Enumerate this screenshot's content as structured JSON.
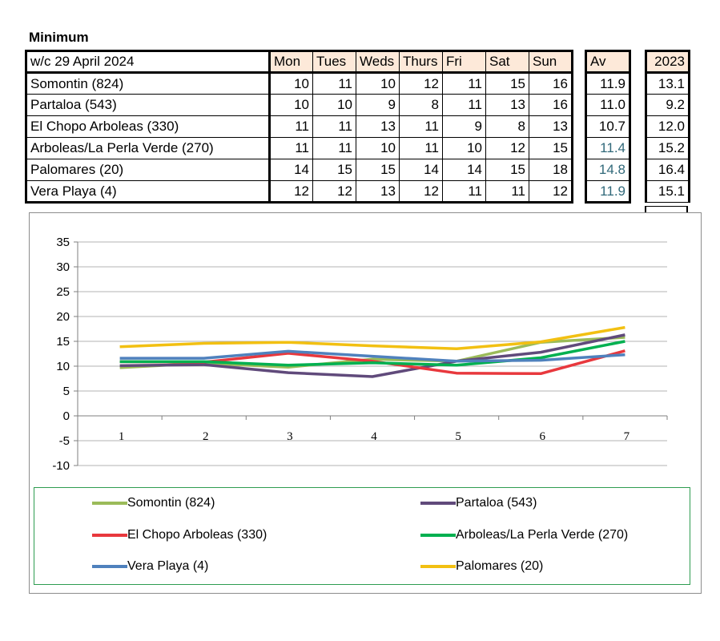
{
  "title": "Minimum",
  "table": {
    "corner_label": "w/c  29 April 2024",
    "days": [
      "Mon",
      "Tues",
      "Weds",
      "Thurs",
      "Fri",
      "Sat",
      "Sun"
    ],
    "av_header": "Av",
    "year_header": "2023",
    "rows": [
      {
        "name": "Somontin (824)",
        "values": [
          "10",
          "11",
          "10",
          "12",
          "11",
          "15",
          "16"
        ],
        "av": "11.9",
        "av_color": "#000000",
        "y2023": "13.1"
      },
      {
        "name": "Partaloa (543)",
        "values": [
          "10",
          "10",
          "9",
          "8",
          "11",
          "13",
          "16"
        ],
        "av": "11.0",
        "av_color": "#000000",
        "y2023": "9.2"
      },
      {
        "name": "El Chopo Arboleas (330)",
        "values": [
          "11",
          "11",
          "13",
          "11",
          "9",
          "8",
          "13"
        ],
        "av": "10.7",
        "av_color": "#000000",
        "y2023": "12.0"
      },
      {
        "name": "Arboleas/La Perla Verde (270)",
        "values": [
          "11",
          "11",
          "10",
          "11",
          "10",
          "12",
          "15"
        ],
        "av": "11.4",
        "av_color": "#31697a",
        "y2023": "15.2"
      },
      {
        "name": "Palomares (20)",
        "values": [
          "14",
          "15",
          "15",
          "14",
          "14",
          "15",
          "18"
        ],
        "av": "14.8",
        "av_color": "#31697a",
        "y2023": "16.4"
      },
      {
        "name": "Vera Playa (4)",
        "values": [
          "12",
          "12",
          "13",
          "12",
          "11",
          "11",
          "12"
        ],
        "av": "11.9",
        "av_color": "#31697a",
        "y2023": "15.1"
      }
    ]
  },
  "chart_data": {
    "type": "line",
    "x": [
      1,
      2,
      3,
      4,
      5,
      6,
      7
    ],
    "ylim": [
      -10,
      35
    ],
    "yticks": [
      -10,
      -5,
      0,
      5,
      10,
      15,
      20,
      25,
      30,
      35
    ],
    "grid": true,
    "legend_position": "bottom",
    "series": [
      {
        "name": "Somontin (824)",
        "color": "#9bbb59",
        "values": [
          9.7,
          10.6,
          9.8,
          11.4,
          11.0,
          14.8,
          15.8
        ]
      },
      {
        "name": "Partaloa (543)",
        "color": "#604a7b",
        "values": [
          10.1,
          10.3,
          8.7,
          7.9,
          11.0,
          12.8,
          16.3
        ]
      },
      {
        "name": "El Chopo Arboleas (330)",
        "color": "#e8383d",
        "values": [
          10.9,
          10.8,
          12.6,
          11.0,
          8.6,
          8.5,
          13.1
        ]
      },
      {
        "name": "Arboleas/La Perla Verde (270)",
        "color": "#00b050",
        "values": [
          10.9,
          10.9,
          10.2,
          10.7,
          10.2,
          11.7,
          15.0
        ]
      },
      {
        "name": "Vera Playa (4)",
        "color": "#4f81bd",
        "values": [
          11.6,
          11.6,
          13.0,
          12.0,
          11.0,
          11.2,
          12.3
        ]
      },
      {
        "name": "Palomares (20)",
        "color": "#f2c012",
        "values": [
          13.9,
          14.6,
          14.8,
          14.1,
          13.5,
          14.9,
          17.8
        ]
      }
    ]
  }
}
